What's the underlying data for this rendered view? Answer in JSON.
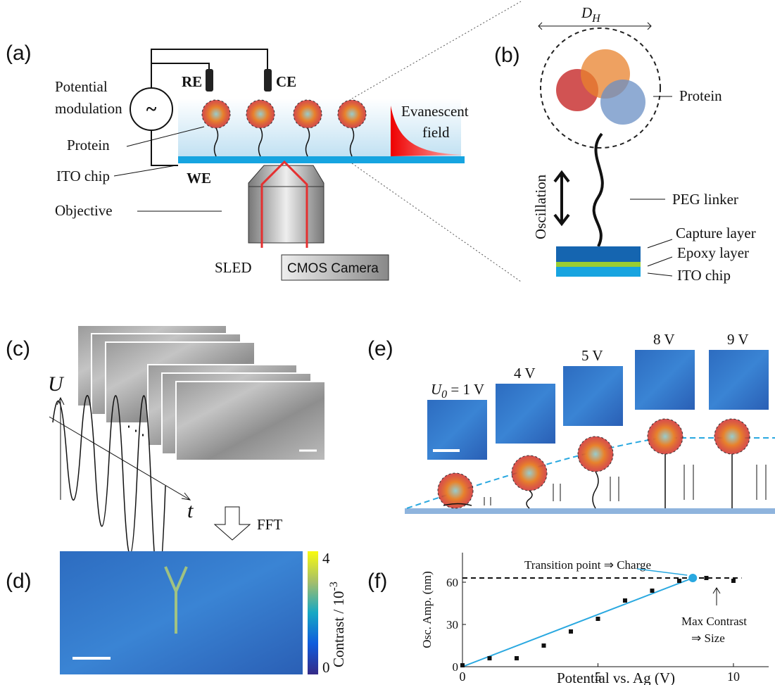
{
  "panels": {
    "a": {
      "label": "(a)",
      "re": "RE",
      "ce": "CE",
      "modulation": [
        "Potential",
        "modulation"
      ],
      "source": "~",
      "protein": "Protein",
      "chip": "ITO chip",
      "we": "WE",
      "objective": "Objective",
      "sled": "SLED",
      "camera": "CMOS Camera",
      "field": [
        "Evanescent",
        "field"
      ]
    },
    "b": {
      "label": "(b)",
      "size": {
        "main": "D",
        "sub": "H"
      },
      "protein": "Protein",
      "linker": "PEG linker",
      "oscillation": "Oscillation",
      "layers": [
        "Capture layer",
        "Epoxy layer",
        "ITO chip"
      ]
    },
    "c": {
      "label": "(c)",
      "u": "U",
      "t": "t",
      "fft": "FFT"
    },
    "d": {
      "label": "(d)",
      "colorbar": {
        "max": "4",
        "min": "0",
        "title": "Contrast / 10",
        "exponent": "-3"
      }
    },
    "e": {
      "label": "(e)",
      "first": {
        "main": "U",
        "sub": "0",
        "rest": " = 1 V"
      },
      "potentials": [
        "4 V",
        "5 V",
        "8 V",
        "9 V"
      ]
    },
    "f": {
      "label": "(f)",
      "type": "scatter",
      "xlabel": "Potential vs. Ag (V)",
      "ylabel": "Osc. Amp. (nm)",
      "x": [
        0,
        1,
        2,
        3,
        4,
        5,
        6,
        7,
        8,
        9,
        10
      ],
      "values": [
        1,
        6,
        6,
        15,
        25,
        34,
        47,
        54,
        61,
        63,
        61
      ],
      "xlim": [
        0,
        11.3
      ],
      "ylim": [
        0,
        81
      ],
      "xticks": [
        0,
        5,
        10
      ],
      "yticks": [
        0,
        30,
        60
      ],
      "fit": {
        "color": "#29a8e0",
        "x": [
          0,
          8.5
        ],
        "y": [
          0,
          63
        ]
      },
      "transition": {
        "x": 8.5,
        "y": 63,
        "label": "Transition point ⇒ Charge"
      },
      "reference": {
        "y": 63,
        "x": [
          0,
          10.3
        ]
      },
      "annotation": [
        "Max Contrast",
        "⇒ Size"
      ]
    }
  }
}
